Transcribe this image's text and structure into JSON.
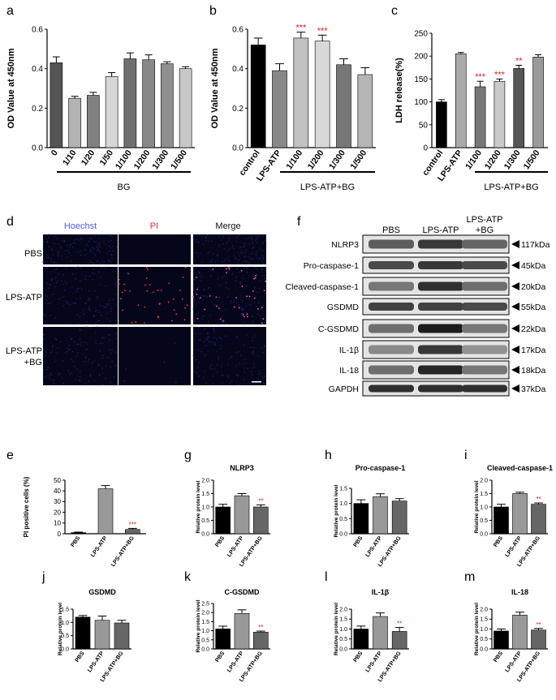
{
  "panel_letters": {
    "a": "a",
    "b": "b",
    "c": "c",
    "d": "d",
    "e": "e",
    "f": "f",
    "g": "g",
    "h": "h",
    "i": "i",
    "j": "j",
    "k": "k",
    "l": "l",
    "m": "m"
  },
  "micrograph": {
    "columns": [
      "Hoechst",
      "PI",
      "Merge"
    ],
    "rows": [
      "PBS",
      "LPS-ATP",
      "LPS-ATP\n+BG"
    ],
    "column_colors": [
      "#4a5cff",
      "#ff2a2a",
      "#111111"
    ]
  },
  "western_blot": {
    "lanes": [
      "PBS",
      "LPS-ATP",
      "LPS-ATP\n+BG"
    ],
    "proteins": [
      {
        "name": "NLRP3",
        "size": "117kDa"
      },
      {
        "name": "Pro-caspase-1",
        "size": "45kDa"
      },
      {
        "name": "Cleaved-caspase-1",
        "size": "20kDa"
      },
      {
        "name": "GSDMD",
        "size": "55kDa"
      },
      {
        "name": "C-GSDMD",
        "size": "22kDa"
      },
      {
        "name": "IL-1β",
        "size": "17kDa"
      },
      {
        "name": "IL-18",
        "size": "18kDa"
      },
      {
        "name": "GAPDH",
        "size": "37kDa"
      }
    ]
  },
  "chart_data": [
    {
      "id": "a",
      "type": "bar",
      "ylabel": "OD Value at 450nm",
      "group_label": "BG",
      "categories": [
        "0",
        "1/10",
        "1/20",
        "1/50",
        "1/100",
        "1/200",
        "1/300",
        "1/500"
      ],
      "values": [
        0.43,
        0.25,
        0.265,
        0.36,
        0.45,
        0.445,
        0.425,
        0.4
      ],
      "errors": [
        0.03,
        0.01,
        0.015,
        0.02,
        0.03,
        0.025,
        0.01,
        0.01
      ],
      "colors": [
        "#555555",
        "#b3b3b3",
        "#808080",
        "#d6d6d6",
        "#707070",
        "#888888",
        "#8f8f8f",
        "#c7c7c7"
      ],
      "significance": [
        "",
        "",
        "",
        "",
        "",
        "",
        "",
        ""
      ],
      "ylim": [
        0,
        0.6
      ],
      "yticks": [
        "0.0",
        "0.2",
        "0.4",
        "0.6"
      ]
    },
    {
      "id": "b",
      "type": "bar",
      "ylabel": "OD Value at 450nm",
      "group_label": "LPS-ATP+BG",
      "categories": [
        "control",
        "LPS-ATP",
        "1/100",
        "1/200",
        "1/300",
        "1/500"
      ],
      "values": [
        0.52,
        0.39,
        0.555,
        0.54,
        0.42,
        0.37
      ],
      "errors": [
        0.035,
        0.035,
        0.03,
        0.03,
        0.03,
        0.035
      ],
      "colors": [
        "#000000",
        "#888888",
        "#c2c2c2",
        "#d8d8d8",
        "#777777",
        "#b5b5b5"
      ],
      "significance": [
        "",
        "",
        "***",
        "***",
        "",
        ""
      ],
      "ylim": [
        0,
        0.6
      ],
      "yticks": [
        "0.0",
        "0.2",
        "0.4",
        "0.6"
      ]
    },
    {
      "id": "c",
      "type": "bar",
      "ylabel": "LDH release(%)",
      "group_label": "LPS-ATP+BG",
      "categories": [
        "control",
        "LPS-ATP",
        "1/100",
        "1/200",
        "1/300",
        "1/500"
      ],
      "values": [
        100,
        205,
        133,
        145,
        173,
        198
      ],
      "errors": [
        5,
        3,
        12,
        5,
        7,
        5
      ],
      "colors": [
        "#000000",
        "#aaaaaa",
        "#777777",
        "#c9c9c9",
        "#555555",
        "#9a9a9a"
      ],
      "significance": [
        "",
        "",
        "***",
        "***",
        "**",
        ""
      ],
      "ylim": [
        0,
        250
      ],
      "yticks": [
        "0",
        "50",
        "100",
        "150",
        "200",
        "250"
      ]
    },
    {
      "id": "e",
      "type": "bar",
      "title": "",
      "ylabel": "PI positive cells (%)",
      "categories": [
        "PBS",
        "LPS-ATP",
        "LPS-ATP+BG"
      ],
      "values": [
        1,
        42,
        4
      ],
      "errors": [
        0.5,
        3,
        1
      ],
      "colors": [
        "#000000",
        "#999999",
        "#666666"
      ],
      "significance": [
        "",
        "",
        "***"
      ],
      "ylim": [
        0,
        50
      ],
      "yticks": [
        "0",
        "10",
        "20",
        "30",
        "40",
        "50"
      ]
    },
    {
      "id": "g",
      "type": "bar",
      "title": "NLRP3",
      "ylabel": "Relative protein level",
      "categories": [
        "PBS",
        "LPS-ATP",
        "LPS-ATP+BG"
      ],
      "values": [
        1.0,
        1.42,
        1.0
      ],
      "errors": [
        0.1,
        0.08,
        0.08
      ],
      "colors": [
        "#000000",
        "#999999",
        "#666666"
      ],
      "significance": [
        "",
        "",
        "**"
      ],
      "ylim": [
        0,
        2.0
      ],
      "yticks": [
        "0.0",
        "0.5",
        "1.0",
        "1.5",
        "2.0"
      ]
    },
    {
      "id": "h",
      "type": "bar",
      "title": "Pro-caspase-1",
      "ylabel": "Relative protein level",
      "categories": [
        "PBS",
        "LPS-ATP",
        "LPS-ATP+BG"
      ],
      "values": [
        1.0,
        1.22,
        1.08
      ],
      "errors": [
        0.12,
        0.1,
        0.08
      ],
      "colors": [
        "#000000",
        "#999999",
        "#666666"
      ],
      "significance": [
        "",
        "",
        ""
      ],
      "ylim": [
        0,
        1.5
      ],
      "yticks": [
        "0.0",
        "0.5",
        "1.0",
        "1.5"
      ]
    },
    {
      "id": "i",
      "type": "bar",
      "title": "Cleaved-caspase-1",
      "ylabel": "Relative protein level",
      "categories": [
        "PBS",
        "LPS-ATP",
        "LPS-ATP+BG"
      ],
      "values": [
        1.0,
        1.5,
        1.1
      ],
      "errors": [
        0.1,
        0.05,
        0.05
      ],
      "colors": [
        "#000000",
        "#999999",
        "#666666"
      ],
      "significance": [
        "",
        "",
        "**"
      ],
      "ylim": [
        0,
        2.0
      ],
      "yticks": [
        "0.0",
        "0.5",
        "1.0",
        "1.5",
        "2.0"
      ]
    },
    {
      "id": "j",
      "type": "bar",
      "title": "GSDMD",
      "ylabel": "Relative protein level",
      "categories": [
        "PBS",
        "LPS-ATP",
        "LPS-ATP+BG"
      ],
      "values": [
        1.2,
        1.08,
        0.98
      ],
      "errors": [
        0.06,
        0.16,
        0.1
      ],
      "colors": [
        "#000000",
        "#999999",
        "#666666"
      ],
      "significance": [
        "",
        "",
        ""
      ],
      "ylim": [
        0,
        1.5
      ],
      "yticks": [
        "0.0",
        "0.5",
        "1.0",
        "1.5"
      ]
    },
    {
      "id": "k",
      "type": "bar",
      "title": "C-GSDMD",
      "ylabel": "Relative protein level",
      "categories": [
        "PBS",
        "LPS-ATP",
        "LPS-ATP+BG"
      ],
      "values": [
        1.1,
        1.95,
        0.92
      ],
      "errors": [
        0.15,
        0.2,
        0.06
      ],
      "colors": [
        "#000000",
        "#999999",
        "#666666"
      ],
      "significance": [
        "",
        "",
        "**"
      ],
      "ylim": [
        0,
        2.5
      ],
      "yticks": [
        "0.0",
        "0.5",
        "1.0",
        "1.5",
        "2.0",
        "2.5"
      ]
    },
    {
      "id": "l",
      "type": "bar",
      "title": "IL-1β",
      "ylabel": "Relative protein level",
      "categories": [
        "PBS",
        "LPS-ATP",
        "LPS-ATP+BG"
      ],
      "values": [
        1.0,
        1.63,
        0.88
      ],
      "errors": [
        0.15,
        0.18,
        0.2
      ],
      "colors": [
        "#000000",
        "#999999",
        "#666666"
      ],
      "significance": [
        "",
        "",
        "**"
      ],
      "ylim": [
        0,
        2.0
      ],
      "yticks": [
        "0.0",
        "0.5",
        "1.0",
        "1.5",
        "2.0"
      ]
    },
    {
      "id": "m",
      "type": "bar",
      "title": "IL-18",
      "ylabel": "Relative protein level",
      "categories": [
        "PBS",
        "LPS-ATP",
        "LPS-ATP+BG"
      ],
      "values": [
        0.9,
        1.7,
        0.95
      ],
      "errors": [
        0.1,
        0.15,
        0.08
      ],
      "colors": [
        "#000000",
        "#999999",
        "#666666"
      ],
      "significance": [
        "",
        "",
        "**"
      ],
      "ylim": [
        0,
        2.0
      ],
      "yticks": [
        "0.0",
        "0.5",
        "1.0",
        "1.5",
        "2.0"
      ]
    }
  ]
}
